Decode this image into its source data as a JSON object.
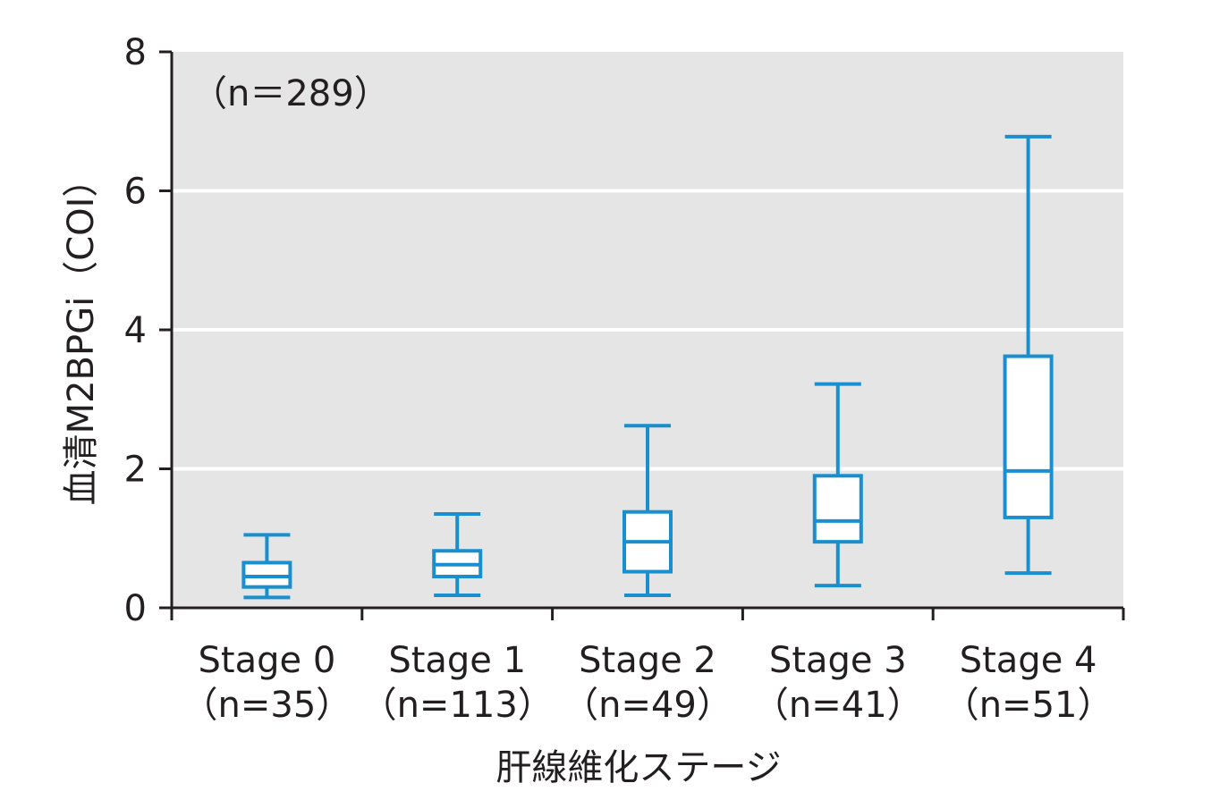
{
  "chart_data": {
    "type": "box",
    "annotation": "（n＝289）",
    "xlabel": "肝線維化ステージ",
    "ylabel": "血清M2BPGi（COI）",
    "ylim": [
      0,
      8
    ],
    "yticks": [
      0,
      2,
      4,
      6,
      8
    ],
    "grid": true,
    "categories": [
      {
        "name": "Stage 0",
        "n_label": "（n=35）"
      },
      {
        "name": "Stage 1",
        "n_label": "（n=113）"
      },
      {
        "name": "Stage 2",
        "n_label": "（n=49）"
      },
      {
        "name": "Stage 3",
        "n_label": "（n=41）"
      },
      {
        "name": "Stage 4",
        "n_label": "（n=51）"
      }
    ],
    "boxes": [
      {
        "whisker_low": 0.15,
        "q1": 0.3,
        "median": 0.45,
        "q3": 0.65,
        "whisker_high": 1.05
      },
      {
        "whisker_low": 0.18,
        "q1": 0.45,
        "median": 0.62,
        "q3": 0.82,
        "whisker_high": 1.35
      },
      {
        "whisker_low": 0.18,
        "q1": 0.52,
        "median": 0.95,
        "q3": 1.38,
        "whisker_high": 2.62
      },
      {
        "whisker_low": 0.32,
        "q1": 0.95,
        "median": 1.25,
        "q3": 1.9,
        "whisker_high": 3.22
      },
      {
        "whisker_low": 0.5,
        "q1": 1.3,
        "median": 1.97,
        "q3": 3.62,
        "whisker_high": 6.78
      }
    ],
    "colors": {
      "box": "#1a8fd0",
      "panel": "#e5e5e5",
      "grid": "#ffffff",
      "axis": "#231f20"
    }
  }
}
